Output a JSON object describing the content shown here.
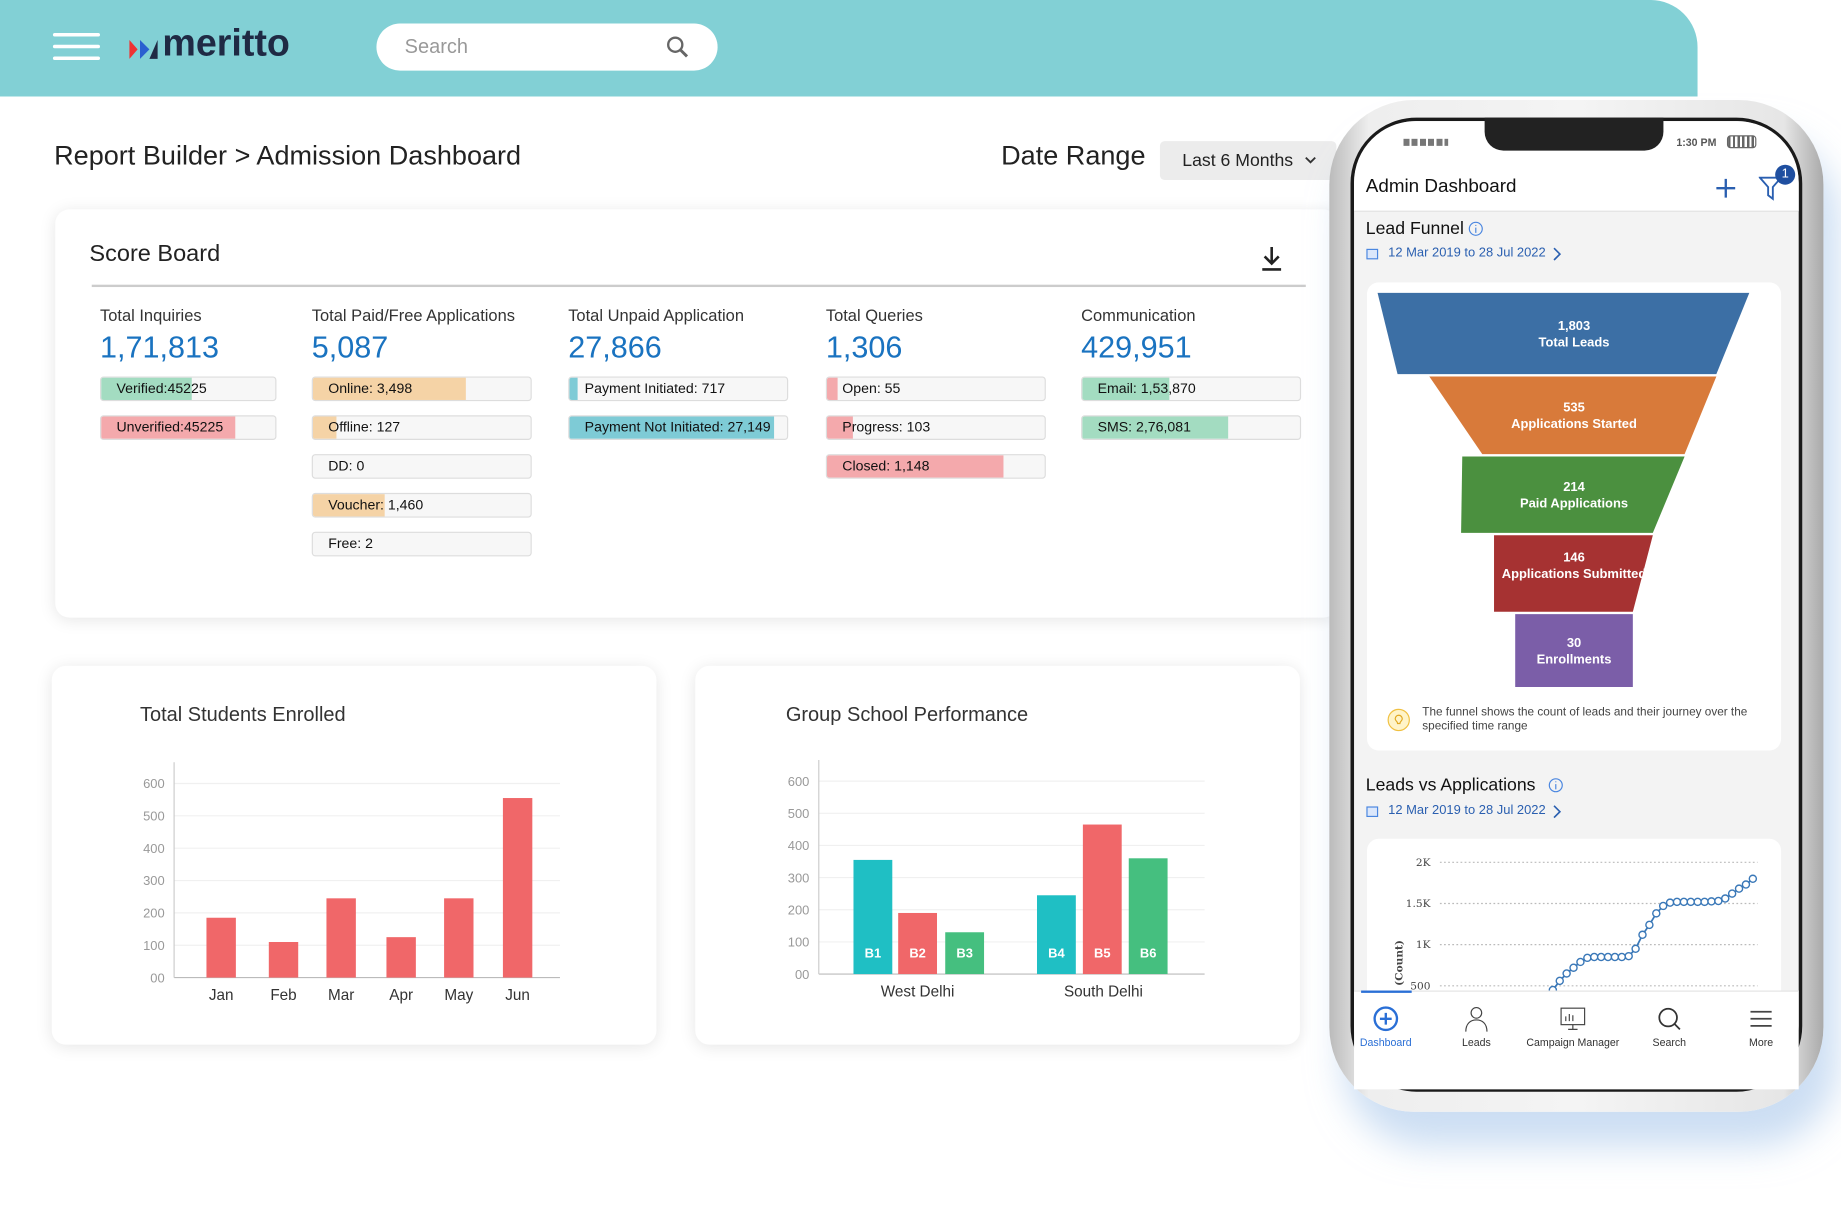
{
  "header": {
    "logo": "meritto",
    "search_placeholder": "Search"
  },
  "breadcrumb": "Report Builder > Admission Dashboard",
  "date_range": {
    "label": "Date Range",
    "value": "Last 6 Months"
  },
  "scoreboard": {
    "title": "Score Board",
    "columns": [
      {
        "label": "Total Inquiries",
        "value": "1,71,813",
        "bars": [
          {
            "text": "Verified:45225",
            "fill": 0.52,
            "color": "#a3dcc1"
          },
          {
            "text": "Unverified:45225",
            "fill": 0.77,
            "color": "#f4a9ac"
          }
        ]
      },
      {
        "label": "Total Paid/Free Applications",
        "value": "5,087",
        "bars": [
          {
            "text": "Online: 3,498",
            "fill": 0.7,
            "color": "#f5d3a6"
          },
          {
            "text": "Offline: 127",
            "fill": 0.11,
            "color": "#f5d3a6"
          },
          {
            "text": "DD: 0",
            "fill": 0,
            "color": "#f5d3a6"
          },
          {
            "text": "Voucher: 1,460",
            "fill": 0.33,
            "color": "#f5d3a6"
          },
          {
            "text": "Free: 2",
            "fill": 0,
            "color": "#f5d3a6"
          }
        ]
      },
      {
        "label": "Total Unpaid Application",
        "value": "27,866",
        "bars": [
          {
            "text": "Payment Initiated: 717",
            "fill": 0.04,
            "color": "#7ecbd6"
          },
          {
            "text": "Payment Not Initiated: 27,149",
            "fill": 0.94,
            "color": "#7ecbd6"
          }
        ]
      },
      {
        "label": "Total Queries",
        "value": "1,306",
        "bars": [
          {
            "text": "Open: 55",
            "fill": 0.05,
            "color": "#f4a9ac"
          },
          {
            "text": "Progress: 103",
            "fill": 0.12,
            "color": "#f4a9ac"
          },
          {
            "text": "Closed: 1,148",
            "fill": 0.81,
            "color": "#f4a9ac"
          }
        ]
      },
      {
        "label": "Communication",
        "value": "429,951",
        "bars": [
          {
            "text": "Email: 1,53,870",
            "fill": 0.4,
            "color": "#a3dcc1"
          },
          {
            "text": "SMS: 2,76,081",
            "fill": 0.67,
            "color": "#a3dcc1"
          }
        ]
      }
    ]
  },
  "chart_data": [
    {
      "type": "bar",
      "title": "Total Students Enrolled",
      "categories": [
        "Jan",
        "Feb",
        "Mar",
        "Apr",
        "May",
        "Jun"
      ],
      "values": [
        185,
        110,
        245,
        125,
        245,
        555
      ],
      "ylim": [
        0,
        600
      ],
      "yticks": [
        "00",
        "100",
        "200",
        "300",
        "400",
        "500",
        "600"
      ],
      "color": "#f06769"
    },
    {
      "type": "bar",
      "title": "Group School Performance",
      "groups": [
        "West Delhi",
        "South Delhi"
      ],
      "categories": [
        "B1",
        "B2",
        "B3",
        "B4",
        "B5",
        "B6"
      ],
      "values": [
        355,
        190,
        130,
        245,
        465,
        360
      ],
      "colors": [
        "#1fbfc4",
        "#f06769",
        "#45bf7f",
        "#1fbfc4",
        "#f06769",
        "#45bf7f"
      ],
      "ylim": [
        0,
        600
      ],
      "yticks": [
        "00",
        "100",
        "200",
        "300",
        "400",
        "500",
        "600"
      ]
    },
    {
      "type": "line",
      "title": "Leads vs Applications",
      "ylabel": "(Count)",
      "yticks": [
        "500",
        "1K",
        "1.5K",
        "2K"
      ],
      "values": [
        450,
        560,
        650,
        720,
        790,
        840,
        850,
        850,
        850,
        850,
        850,
        860,
        950,
        1120,
        1240,
        1380,
        1470,
        1510,
        1520,
        1520,
        1520,
        1520,
        1520,
        1525,
        1530,
        1560,
        1620,
        1680,
        1730,
        1800
      ],
      "color": "#3a78b8"
    }
  ],
  "phone": {
    "time": "1:30 PM",
    "title": "Admin Dashboard",
    "filter_badge": "1",
    "lead_funnel": {
      "title": "Lead Funnel",
      "date": "12 Mar 2019 to 28 Jul 2022",
      "stages": [
        {
          "value": "1,803",
          "label": "Total Leads",
          "color": "#3c6fa5"
        },
        {
          "value": "535",
          "label": "Applications Started",
          "color": "#d87a3a"
        },
        {
          "value": "214",
          "label": "Paid Applications",
          "color": "#4b903f"
        },
        {
          "value": "146",
          "label": "Applications Submitted",
          "color": "#a63232"
        },
        {
          "value": "30",
          "label": "Enrollments",
          "color": "#7b5ea8"
        }
      ],
      "note": "The funnel shows the count of leads and their journey over the specified time range"
    },
    "leads_vs_apps": {
      "title": "Leads vs Applications",
      "date": "12 Mar 2019 to 28 Jul 2022"
    },
    "nav": [
      "Dashboard",
      "Leads",
      "Campaign Manager",
      "Search",
      "More"
    ]
  }
}
